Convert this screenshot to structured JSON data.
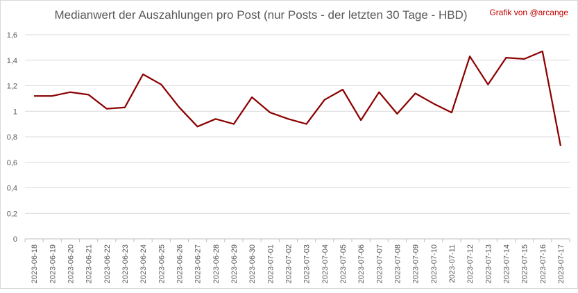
{
  "chart_data": {
    "type": "line",
    "title": "Medianwert der Auszahlungen pro Post (nur Posts - der letzten 30 Tage - HBD)",
    "credit": "Grafik von @arcange",
    "xlabel": "",
    "ylabel": "",
    "ylim": [
      0,
      1.6
    ],
    "y_ticks": [
      "0",
      "0,2",
      "0,4",
      "0,6",
      "0,8",
      "1",
      "1,2",
      "1,4",
      "1,6"
    ],
    "y_tick_values": [
      0,
      0.2,
      0.4,
      0.6,
      0.8,
      1.0,
      1.2,
      1.4,
      1.6
    ],
    "grid": true,
    "legend": "none",
    "categories": [
      "2023-06-18",
      "2023-06-19",
      "2023-06-20",
      "2023-06-21",
      "2023-06-22",
      "2023-06-23",
      "2023-06-24",
      "2023-06-25",
      "2023-06-26",
      "2023-06-27",
      "2023-06-28",
      "2023-06-29",
      "2023-06-30",
      "2023-07-01",
      "2023-07-02",
      "2023-07-03",
      "2023-07-04",
      "2023-07-05",
      "2023-07-06",
      "2023-07-07",
      "2023-07-08",
      "2023-07-09",
      "2023-07-10",
      "2023-07-11",
      "2023-07-12",
      "2023-07-13",
      "2023-07-14",
      "2023-07-15",
      "2023-07-16",
      "2023-07-17"
    ],
    "series": [
      {
        "color": "#8b0000",
        "values": [
          1.12,
          1.12,
          1.15,
          1.13,
          1.02,
          1.03,
          1.29,
          1.21,
          1.03,
          0.88,
          0.94,
          0.9,
          1.11,
          0.99,
          0.94,
          0.9,
          1.09,
          1.17,
          0.93,
          1.15,
          0.98,
          1.14,
          1.06,
          0.99,
          1.43,
          1.21,
          1.42,
          1.41,
          1.47,
          0.73
        ]
      }
    ]
  },
  "colors": {
    "line": "#8b0000",
    "credit": "#c00000",
    "text": "#595959"
  }
}
